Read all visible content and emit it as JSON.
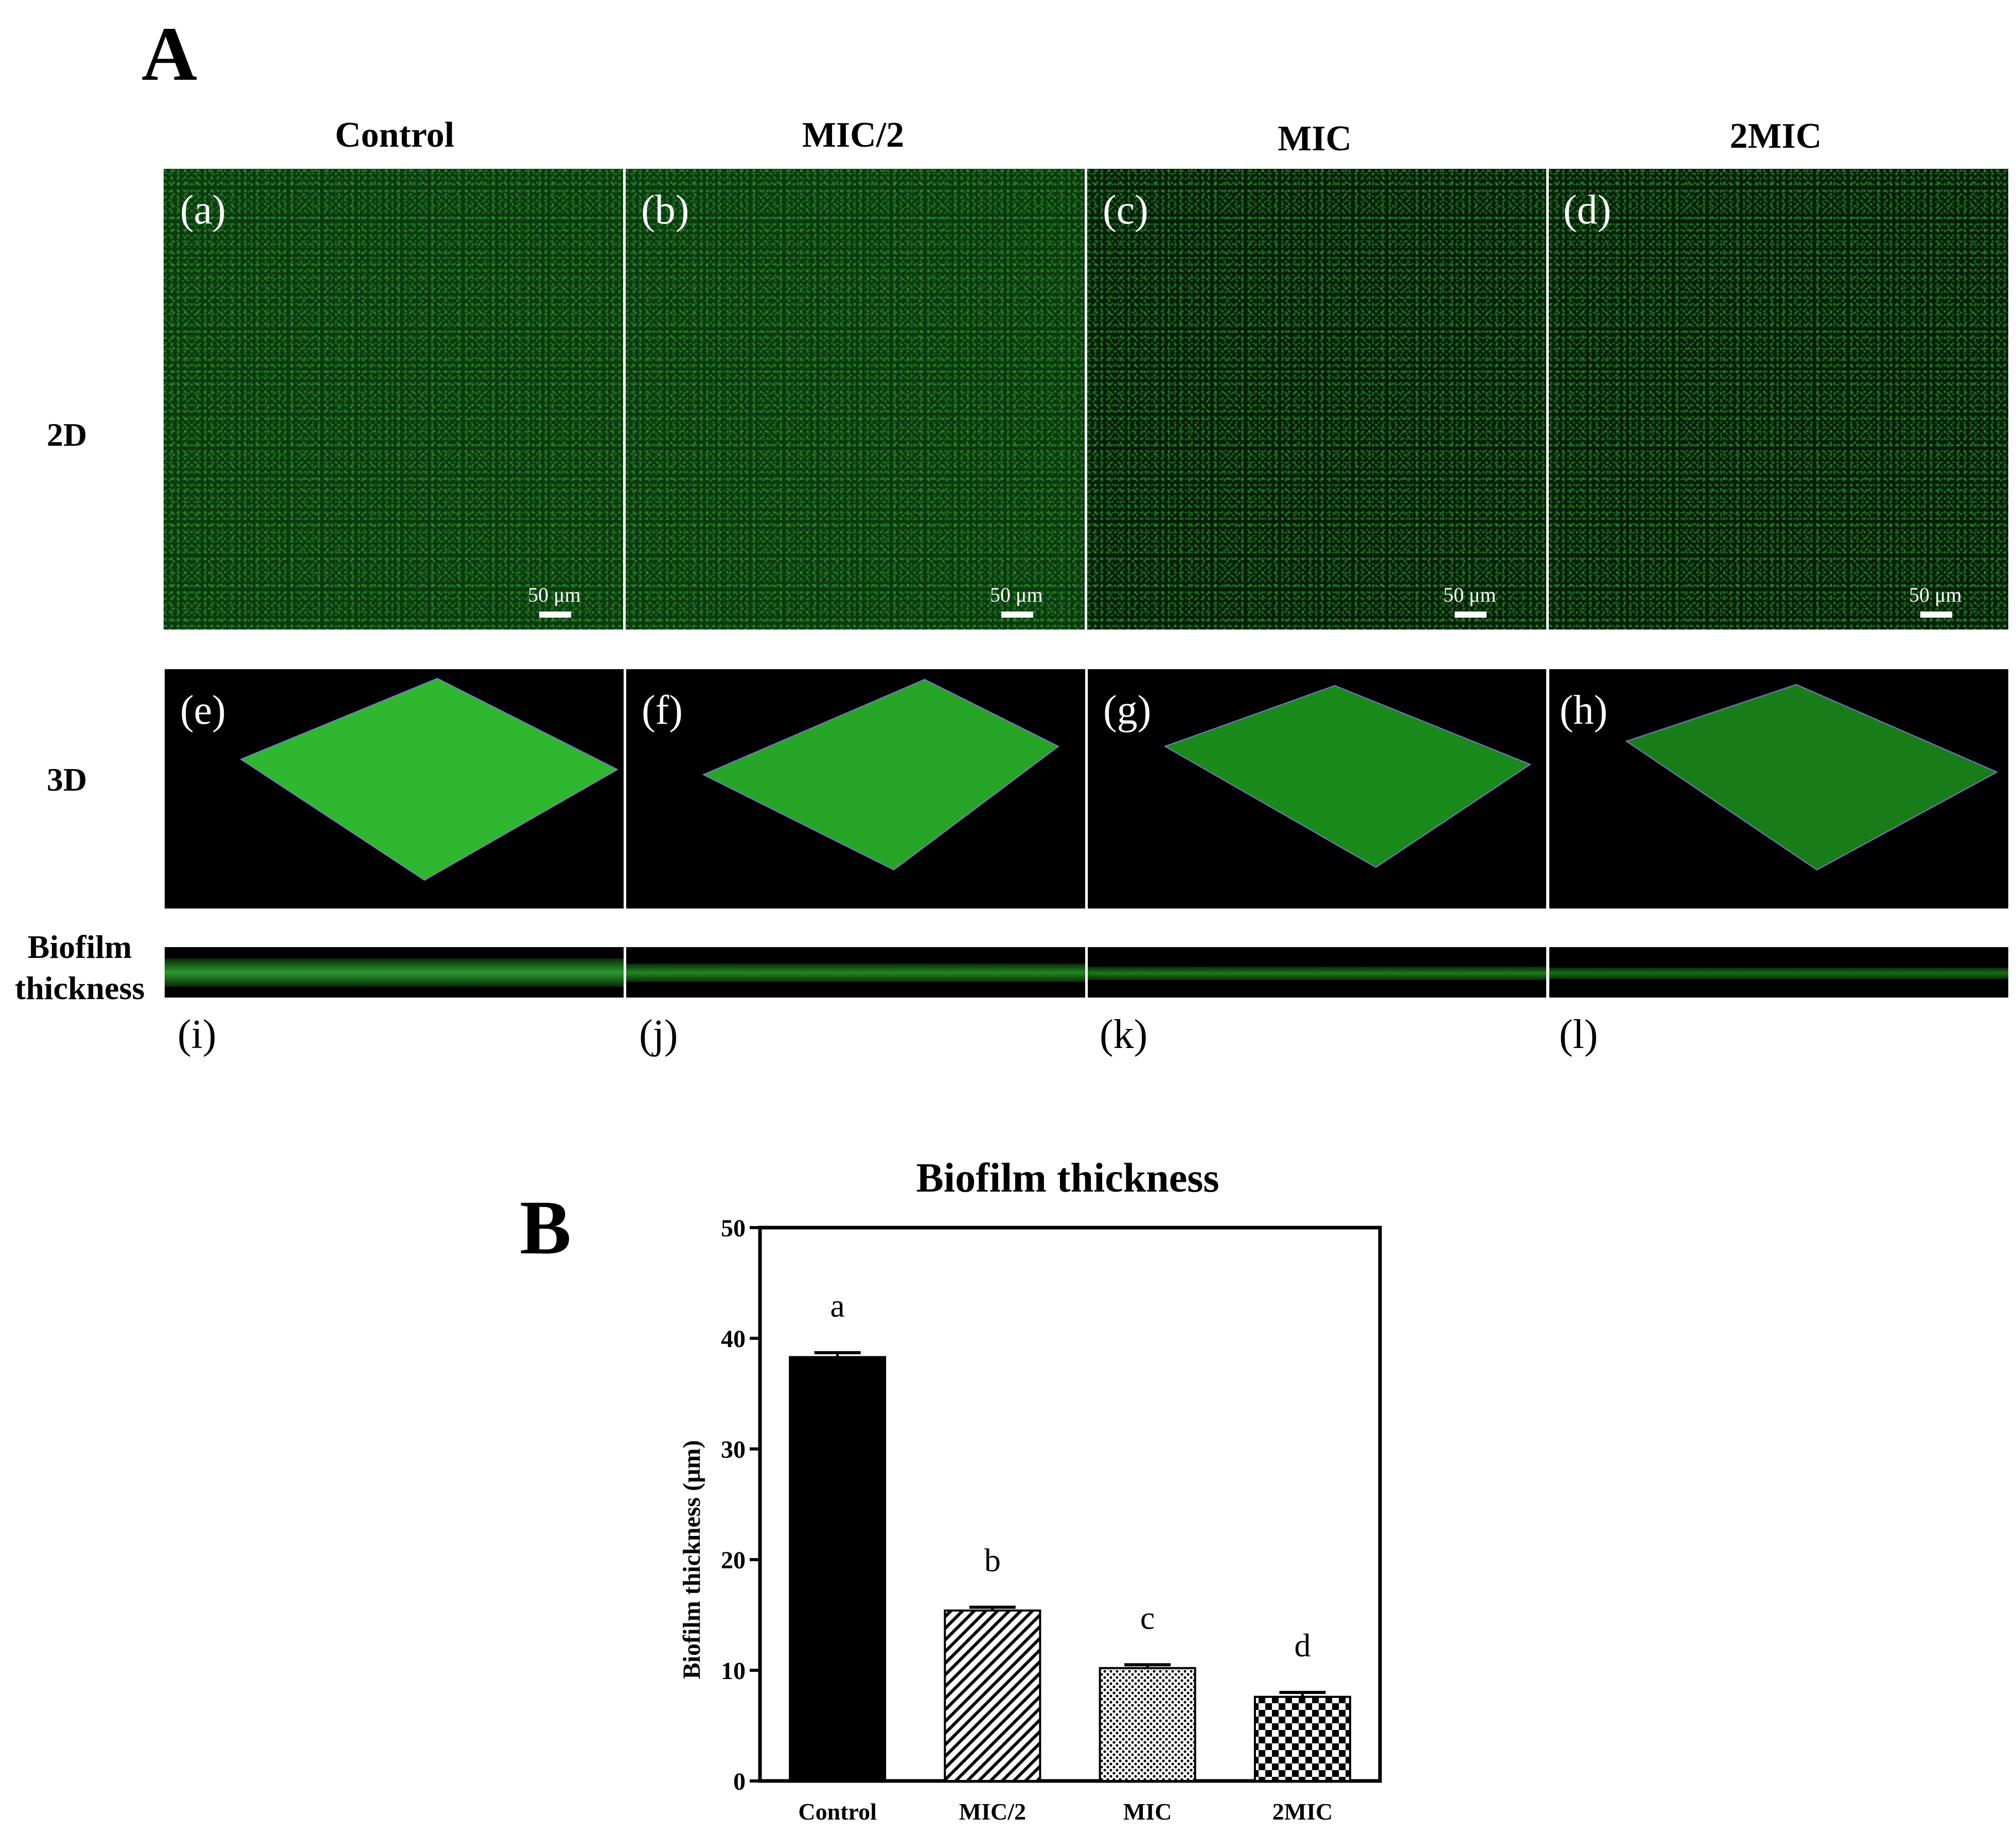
{
  "panel_a": {
    "letter": "A",
    "columns": [
      "Control",
      "MIC/2",
      "MIC",
      "2MIC"
    ],
    "rows": {
      "row_2d": "2D",
      "row_3d": "3D",
      "row_thickness_line1": "Biofilm",
      "row_thickness_line2": "thickness"
    },
    "labels_2d": [
      "(a)",
      "(b)",
      "(c)",
      "(d)"
    ],
    "labels_3d": [
      "(e)",
      "(f)",
      "(g)",
      "(h)"
    ],
    "labels_thickness": [
      "(i)",
      "(j)",
      "(k)",
      "(l)"
    ],
    "scale_bar": "50 μm"
  },
  "panel_b": {
    "letter": "B"
  },
  "chart_data": {
    "type": "bar",
    "title": "Biofilm thickness",
    "xlabel": "",
    "ylabel": "Biofilm thickness (μm)",
    "categories": [
      "Control",
      "MIC/2",
      "MIC",
      "2MIC"
    ],
    "values": [
      38.3,
      15.4,
      10.2,
      7.6
    ],
    "errors": [
      0.4,
      0.3,
      0.3,
      0.4
    ],
    "significance": [
      "a",
      "b",
      "c",
      "d"
    ],
    "fills": [
      "solid",
      "diagonal-hatch",
      "dots",
      "checker"
    ],
    "ylim": [
      0,
      50
    ],
    "yticks": [
      0,
      10,
      20,
      30,
      40,
      50
    ],
    "grid": false
  },
  "colors": {
    "bar": "#000000",
    "biofilm_green": "#3aa83a",
    "background": "#ffffff"
  }
}
